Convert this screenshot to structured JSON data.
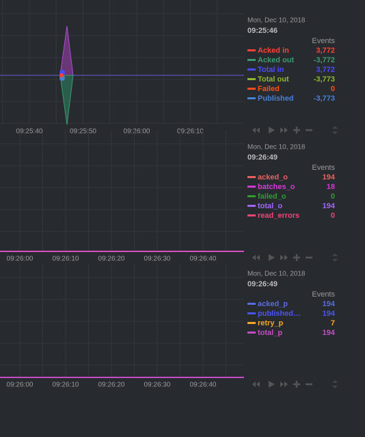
{
  "panels": [
    {
      "date": "Mon, Dec 10, 2018",
      "time": "09:25:46",
      "units": "Events",
      "times": [
        "09:25:40",
        "09:25:50",
        "09:26:00",
        "09:26:10"
      ],
      "dimensions": [
        {
          "name": "Acked in",
          "value": "3,772",
          "color": "#ff4136"
        },
        {
          "name": "Acked out",
          "value": "-3,772",
          "color": "#3d9970"
        },
        {
          "name": "Total in",
          "value": "3,772",
          "color": "#4b4bff"
        },
        {
          "name": "Total out",
          "value": "-3,773",
          "color": "#8fb82a"
        },
        {
          "name": "Failed",
          "value": "0",
          "color": "#ff5010"
        },
        {
          "name": "Published",
          "value": "-3,773",
          "color": "#4a7fd6"
        }
      ]
    },
    {
      "date": "Mon, Dec 10, 2018",
      "time": "09:26:49",
      "units": "Events",
      "times": [
        "09:26:00",
        "09:26:10",
        "09:26:20",
        "09:26:30",
        "09:26:40"
      ],
      "dimensions": [
        {
          "name": "acked_o",
          "value": "194",
          "color": "#e8615f"
        },
        {
          "name": "batches_o",
          "value": "18",
          "color": "#d936d6"
        },
        {
          "name": "failed_o",
          "value": "0",
          "color": "#2f9e2f"
        },
        {
          "name": "total_o",
          "value": "194",
          "color": "#a066ff"
        },
        {
          "name": "read_errors",
          "value": "0",
          "color": "#ee4477"
        }
      ]
    },
    {
      "date": "Mon, Dec 10, 2018",
      "time": "09:26:49",
      "units": "Events",
      "times": [
        "09:26:00",
        "09:26:10",
        "09:26:20",
        "09:26:30",
        "09:26:40"
      ],
      "dimensions": [
        {
          "name": "acked_p",
          "value": "194",
          "color": "#5a6be0"
        },
        {
          "name": "published…",
          "value": "194",
          "color": "#4a55ee"
        },
        {
          "name": "retry_p",
          "value": "7",
          "color": "#f5a623"
        },
        {
          "name": "total_p",
          "value": "194",
          "color": "#c44cc4"
        }
      ]
    }
  ]
}
